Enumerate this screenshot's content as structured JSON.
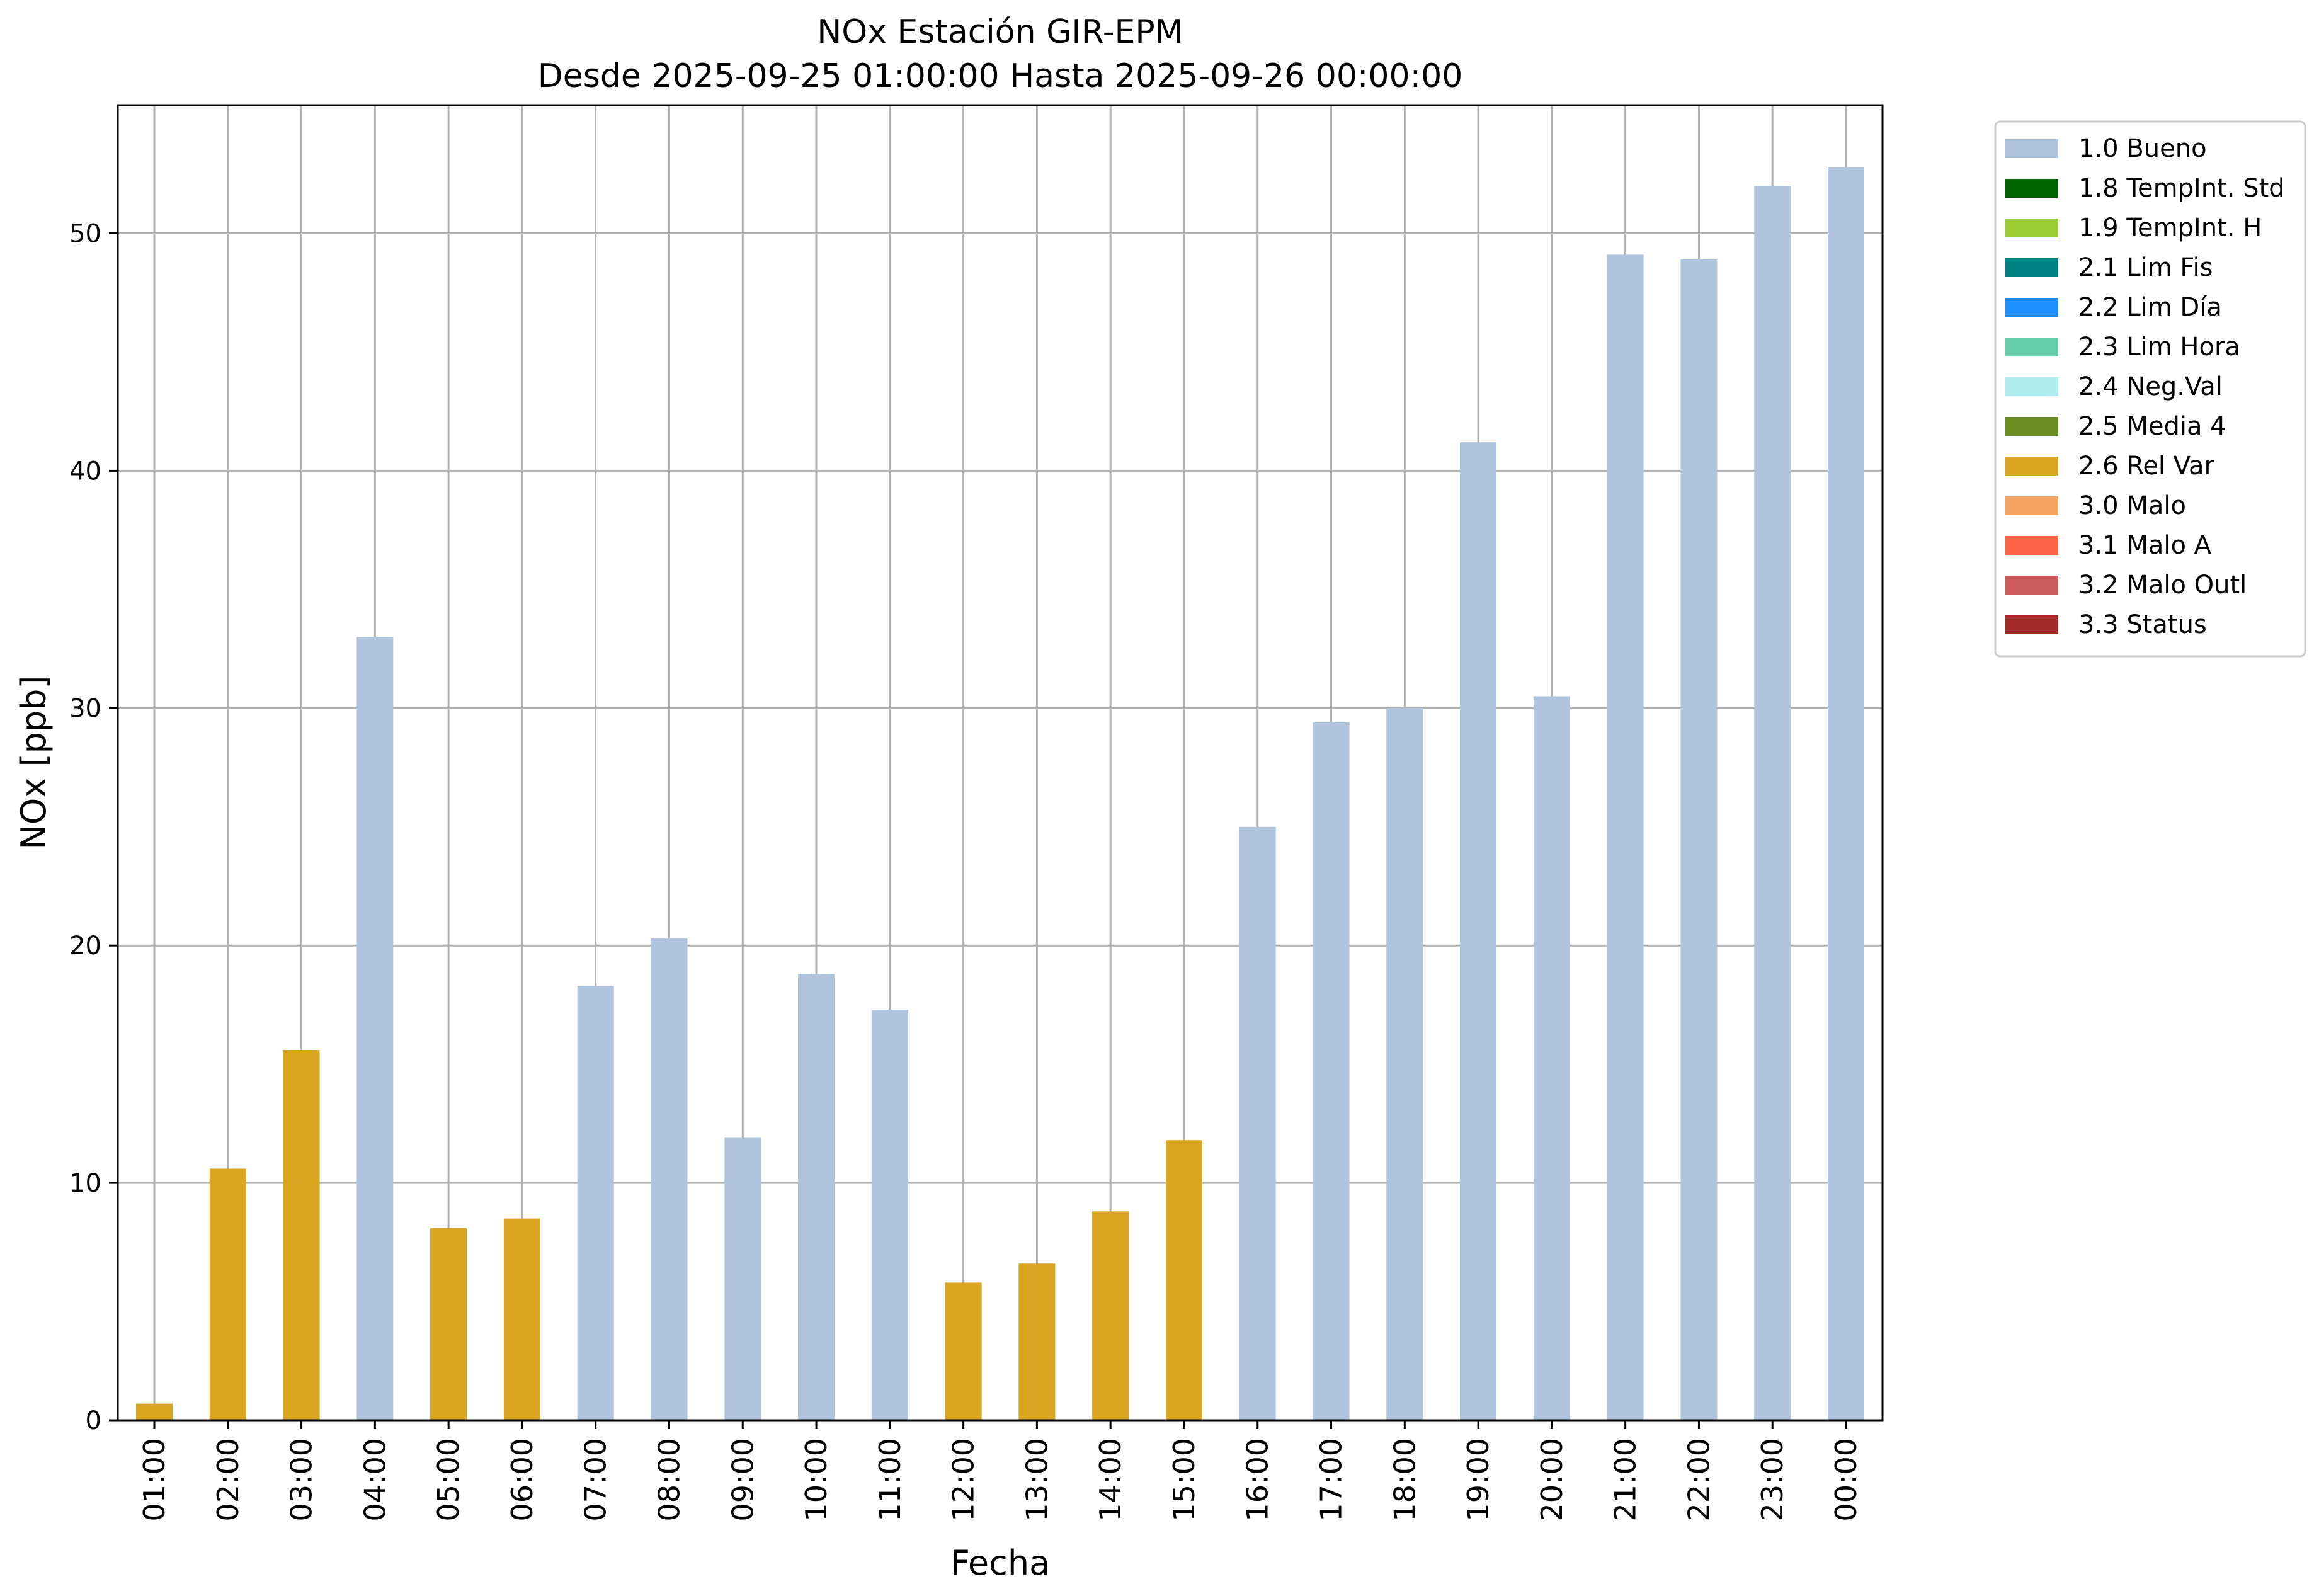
{
  "chart_data": {
    "type": "bar",
    "title": "NOx Estación GIR-EPM",
    "subtitle": "Desde 2025-09-25 01:00:00 Hasta 2025-09-26 00:00:00",
    "xlabel": "Fecha",
    "ylabel": "NOx [ppb]",
    "ylim": [
      0,
      55.4
    ],
    "yticks": [
      0,
      10,
      20,
      30,
      40,
      50
    ],
    "grid": true,
    "legend_position": "outside-top-right",
    "categories": [
      "01:00",
      "02:00",
      "03:00",
      "04:00",
      "05:00",
      "06:00",
      "07:00",
      "08:00",
      "09:00",
      "10:00",
      "11:00",
      "12:00",
      "13:00",
      "14:00",
      "15:00",
      "16:00",
      "17:00",
      "18:00",
      "19:00",
      "20:00",
      "21:00",
      "22:00",
      "23:00",
      "00:00"
    ],
    "values": [
      0.7,
      10.6,
      15.6,
      33.0,
      8.1,
      8.5,
      18.3,
      20.3,
      11.9,
      18.8,
      17.3,
      5.8,
      6.6,
      8.8,
      11.8,
      25.0,
      29.4,
      30.0,
      41.2,
      30.5,
      49.1,
      48.9,
      52.0,
      52.8
    ],
    "flags": [
      "2.6 Rel Var",
      "2.6 Rel Var",
      "2.6 Rel Var",
      "1.0 Bueno",
      "2.6 Rel Var",
      "2.6 Rel Var",
      "1.0 Bueno",
      "1.0 Bueno",
      "1.0 Bueno",
      "1.0 Bueno",
      "1.0 Bueno",
      "2.6 Rel Var",
      "2.6 Rel Var",
      "2.6 Rel Var",
      "2.6 Rel Var",
      "1.0 Bueno",
      "1.0 Bueno",
      "1.0 Bueno",
      "1.0 Bueno",
      "1.0 Bueno",
      "1.0 Bueno",
      "1.0 Bueno",
      "1.0 Bueno",
      "1.0 Bueno"
    ],
    "legend": [
      {
        "label": "1.0 Bueno",
        "color": "#b0c4de"
      },
      {
        "label": "1.8 TempInt. Std",
        "color": "#006400"
      },
      {
        "label": "1.9 TempInt. H",
        "color": "#9acd32"
      },
      {
        "label": "2.1 Lim Fis",
        "color": "#008080"
      },
      {
        "label": "2.2 Lim Día",
        "color": "#1e90ff"
      },
      {
        "label": "2.3 Lim Hora",
        "color": "#66cdaa"
      },
      {
        "label": "2.4 Neg.Val",
        "color": "#afeeee"
      },
      {
        "label": "2.5 Media 4",
        "color": "#6b8e23"
      },
      {
        "label": "2.6 Rel Var",
        "color": "#daa520"
      },
      {
        "label": "3.0 Malo",
        "color": "#f4a460"
      },
      {
        "label": "3.1 Malo A",
        "color": "#ff6347"
      },
      {
        "label": "3.2 Malo Outl",
        "color": "#cd5c5c"
      },
      {
        "label": "3.3 Status",
        "color": "#a52a2a"
      }
    ]
  }
}
